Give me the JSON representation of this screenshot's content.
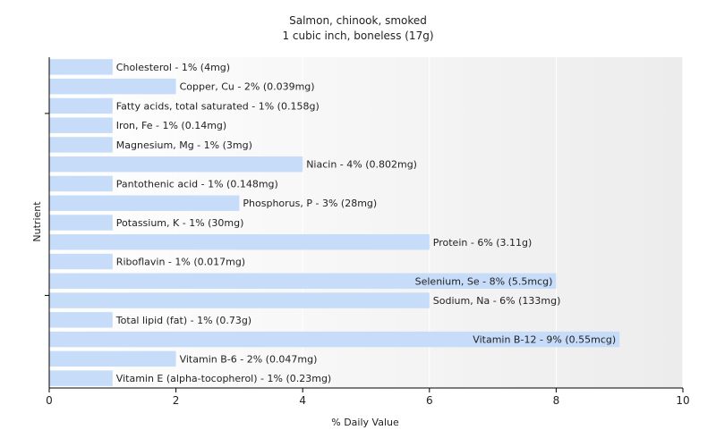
{
  "chart_data": {
    "type": "bar",
    "orientation": "horizontal",
    "title": "Salmon, chinook, smoked",
    "subtitle": "1 cubic inch, boneless (17g)",
    "xlabel": "% Daily Value",
    "ylabel": "Nutrient",
    "xlim": [
      0,
      10
    ],
    "xticks": [
      0,
      2,
      4,
      6,
      8,
      10
    ],
    "grid": true,
    "bar_color": "#c6dcf8",
    "categories": [
      "Cholesterol",
      "Copper, Cu",
      "Fatty acids, total saturated",
      "Iron, Fe",
      "Magnesium, Mg",
      "Niacin",
      "Pantothenic acid",
      "Phosphorus, P",
      "Potassium, K",
      "Protein",
      "Riboflavin",
      "Selenium, Se",
      "Sodium, Na",
      "Total lipid (fat)",
      "Vitamin B-12",
      "Vitamin B-6",
      "Vitamin E (alpha-tocopherol)"
    ],
    "values": [
      1,
      2,
      1,
      1,
      1,
      4,
      1,
      3,
      1,
      6,
      1,
      8,
      6,
      1,
      9,
      2,
      1
    ],
    "labels": [
      "Cholesterol - 1% (4mg)",
      "Copper, Cu - 2% (0.039mg)",
      "Fatty acids, total saturated - 1% (0.158g)",
      "Iron, Fe - 1% (0.14mg)",
      "Magnesium, Mg - 1% (3mg)",
      "Niacin - 4% (0.802mg)",
      "Pantothenic acid - 1% (0.148mg)",
      "Phosphorus, P - 3% (28mg)",
      "Potassium, K - 1% (30mg)",
      "Protein - 6% (3.11g)",
      "Riboflavin - 1% (0.017mg)",
      "Selenium, Se - 8% (5.5mcg)",
      "Sodium, Na - 6% (133mg)",
      "Total lipid (fat) - 1% (0.73g)",
      "Vitamin B-12 - 9% (0.55mcg)",
      "Vitamin B-6 - 2% (0.047mg)",
      "Vitamin E (alpha-tocopherol) - 1% (0.23mg)"
    ]
  }
}
